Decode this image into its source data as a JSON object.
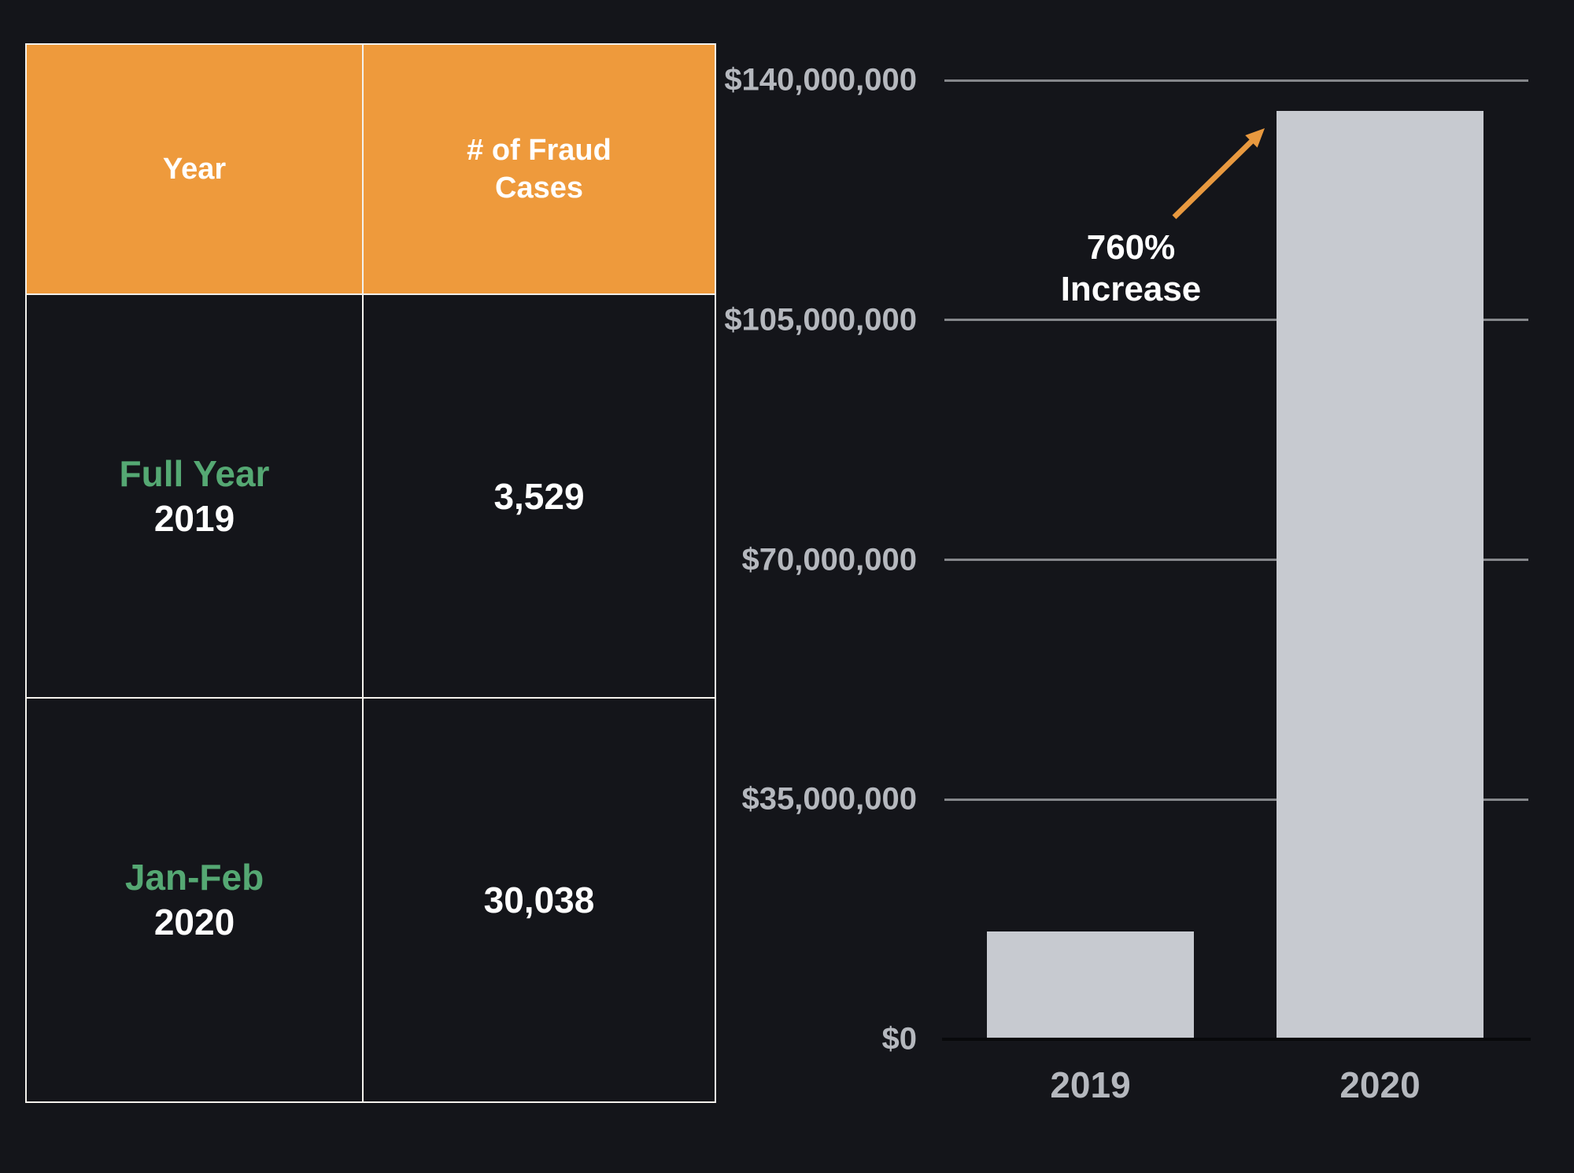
{
  "table": {
    "header": {
      "col1": "Year",
      "col2": "# of Fraud Cases"
    },
    "rows": [
      {
        "period": "Full Year",
        "year": "2019",
        "cases": "3,529"
      },
      {
        "period": "Jan-Feb",
        "year": "2020",
        "cases": "30,038"
      }
    ]
  },
  "chart_data": {
    "type": "bar",
    "title": "",
    "xlabel": "",
    "ylabel": "",
    "categories": [
      "2019",
      "2020"
    ],
    "values": [
      15700000,
      135500000
    ],
    "ylim": [
      0,
      140000000
    ],
    "yticks": [
      {
        "value": 0,
        "label": "$0"
      },
      {
        "value": 35000000,
        "label": "$35,000,000"
      },
      {
        "value": 70000000,
        "label": "$70,000,000"
      },
      {
        "value": 105000000,
        "label": "$105,000,000"
      },
      {
        "value": 140000000,
        "label": "$140,000,000"
      }
    ],
    "grid": true,
    "legend": "none",
    "annotation": {
      "text": "760% Increase",
      "lines": [
        "760%",
        "Increase"
      ]
    }
  },
  "colors": {
    "background": "#14151A",
    "header_orange": "#EE9A3C",
    "green_text": "#55A873",
    "white_text": "#FFFFFF",
    "bar_gray": "#C7CAD0",
    "axis_label_gray": "#B5B8BE",
    "gridline_gray": "#85878B",
    "zero_axis_black": "#08090B",
    "arrow_orange": "#E8993F",
    "table_border": "#F3F1EC"
  }
}
